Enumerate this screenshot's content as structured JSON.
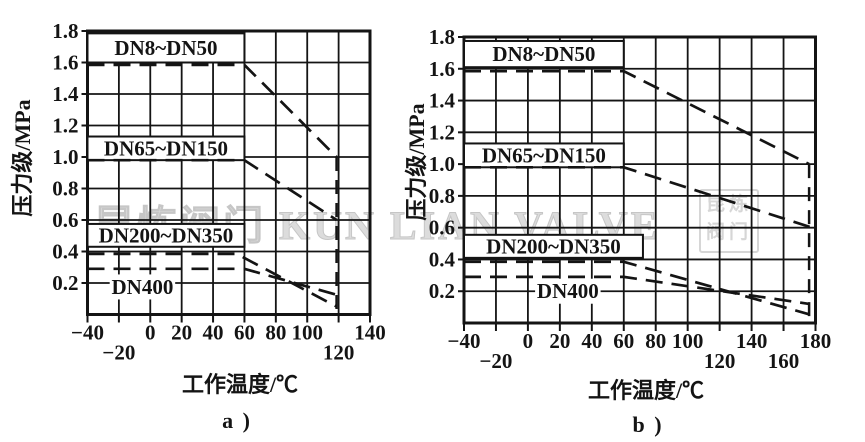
{
  "figure": {
    "background": "#ffffff",
    "ink_color": "#141414",
    "watermark": {
      "text": "昆炼阀门 KUN LIAN VALVE",
      "logo_line1": "昆炼",
      "logo_line2": "阀门",
      "color": "#cfcfcf"
    }
  },
  "chart_data": [
    {
      "id": "a",
      "type": "line",
      "title": "",
      "sublabel": "a )",
      "xlabel": "工作温度/℃",
      "ylabel": "压力级/MPa",
      "xlim": [
        -40,
        140
      ],
      "ylim": [
        0,
        1.8
      ],
      "x_grid_step": 20,
      "y_grid_step": 0.2,
      "grid": true,
      "line_style": "dashed",
      "x_ticks_row1": [
        {
          "v": -40,
          "label": "−40"
        },
        {
          "v": 0,
          "label": "0"
        },
        {
          "v": 20,
          "label": "20"
        },
        {
          "v": 40,
          "label": "40"
        },
        {
          "v": 60,
          "label": "60"
        },
        {
          "v": 80,
          "label": "80"
        },
        {
          "v": 100,
          "label": "100"
        },
        {
          "v": 140,
          "label": "140"
        }
      ],
      "x_ticks_row2": [
        {
          "v": -20,
          "label": "−20"
        },
        {
          "v": 120,
          "label": "120"
        }
      ],
      "y_ticks": [
        {
          "v": 0.2,
          "label": "0.2"
        },
        {
          "v": 0.4,
          "label": "0.4"
        },
        {
          "v": 0.6,
          "label": "0.6"
        },
        {
          "v": 0.8,
          "label": "0.8"
        },
        {
          "v": 1.0,
          "label": "1.0"
        },
        {
          "v": 1.2,
          "label": "1.2"
        },
        {
          "v": 1.4,
          "label": "1.4"
        },
        {
          "v": 1.6,
          "label": "1.6"
        },
        {
          "v": 1.8,
          "label": "1.8"
        }
      ],
      "series": [
        {
          "name": "DN8~DN50",
          "points": [
            [
              -40,
              1.585
            ],
            [
              60,
              1.585
            ],
            [
              118.7,
              1.0
            ]
          ]
        },
        {
          "name": "DN65~DN150",
          "points": [
            [
              -40,
              0.98
            ],
            [
              60,
              0.98
            ],
            [
              118.7,
              0.6
            ]
          ]
        },
        {
          "name": "DN200~DN350",
          "points": [
            [
              -40,
              0.385
            ],
            [
              55,
              0.385
            ],
            [
              118.7,
              0.05
            ]
          ]
        },
        {
          "name": "DN400",
          "points": [
            [
              -40,
              0.29
            ],
            [
              60,
              0.29
            ],
            [
              118.7,
              0.125
            ]
          ]
        }
      ],
      "max_temp_line": {
        "x": 118.7,
        "y_from": 1.0,
        "y_to": 0
      },
      "series_labels": [
        {
          "text": "DN8~DN50",
          "boxed": true,
          "x_from": -40,
          "x_to": 60,
          "y_from": 1.6,
          "y_to": 1.785
        },
        {
          "text": "DN65~DN150",
          "boxed": true,
          "x_from": -40,
          "x_to": 60,
          "y_from": 0.98,
          "y_to": 1.13
        },
        {
          "text": "DN200~DN350",
          "boxed": true,
          "x_from": -40,
          "x_to": 60,
          "y_from": 0.43,
          "y_to": 0.575
        },
        {
          "text": "DN400",
          "boxed": false,
          "x_center": -5,
          "y_center": 0.175
        }
      ]
    },
    {
      "id": "b",
      "type": "line",
      "title": "",
      "sublabel": "b )",
      "xlabel": "工作温度/℃",
      "ylabel": "压力级/MPa",
      "xlim": [
        -40,
        180
      ],
      "ylim": [
        0,
        1.8
      ],
      "x_grid_step": 20,
      "y_grid_step": 0.2,
      "grid": true,
      "line_style": "dashed",
      "x_ticks_row1": [
        {
          "v": -40,
          "label": "−40"
        },
        {
          "v": 0,
          "label": "0"
        },
        {
          "v": 20,
          "label": "20"
        },
        {
          "v": 40,
          "label": "40"
        },
        {
          "v": 60,
          "label": "60"
        },
        {
          "v": 80,
          "label": "80"
        },
        {
          "v": 100,
          "label": "100"
        },
        {
          "v": 140,
          "label": "140"
        },
        {
          "v": 180,
          "label": "180"
        }
      ],
      "x_ticks_row2": [
        {
          "v": -20,
          "label": "−20"
        },
        {
          "v": 120,
          "label": "120"
        },
        {
          "v": 160,
          "label": "160"
        }
      ],
      "y_ticks": [
        {
          "v": 0.2,
          "label": "0.2"
        },
        {
          "v": 0.4,
          "label": "0.4"
        },
        {
          "v": 0.6,
          "label": "0.6"
        },
        {
          "v": 0.8,
          "label": "0.8"
        },
        {
          "v": 1.0,
          "label": "1.0"
        },
        {
          "v": 1.2,
          "label": "1.2"
        },
        {
          "v": 1.4,
          "label": "1.4"
        },
        {
          "v": 1.6,
          "label": "1.6"
        },
        {
          "v": 1.8,
          "label": "1.8"
        }
      ],
      "series": [
        {
          "name": "DN8~DN50",
          "points": [
            [
              -40,
              1.585
            ],
            [
              60,
              1.585
            ],
            [
              176,
              1.0
            ]
          ]
        },
        {
          "name": "DN65~DN150",
          "points": [
            [
              -40,
              0.98
            ],
            [
              60,
              0.98
            ],
            [
              179.5,
              0.595
            ]
          ]
        },
        {
          "name": "DN200~DN350",
          "points": [
            [
              -40,
              0.385
            ],
            [
              60,
              0.385
            ],
            [
              176,
              0.055
            ]
          ]
        },
        {
          "name": "DN400",
          "points": [
            [
              -40,
              0.29
            ],
            [
              60,
              0.29
            ],
            [
              176,
              0.12
            ]
          ]
        }
      ],
      "max_temp_line": {
        "x": 176,
        "y_from": 1.0,
        "y_to": 0
      },
      "series_labels": [
        {
          "text": "DN8~DN50",
          "boxed": true,
          "x_from": -40,
          "x_to": 60,
          "y_from": 1.61,
          "y_to": 1.775
        },
        {
          "text": "DN65~DN150",
          "boxed": true,
          "x_from": -40,
          "x_to": 60,
          "y_from": 0.98,
          "y_to": 1.13
        },
        {
          "text": "DN200~DN350",
          "boxed": true,
          "x_from": -40,
          "x_to": 72,
          "y_from": 0.41,
          "y_to": 0.555
        },
        {
          "text": "DN400",
          "boxed": false,
          "x_center": 25,
          "y_center": 0.2
        }
      ]
    }
  ]
}
